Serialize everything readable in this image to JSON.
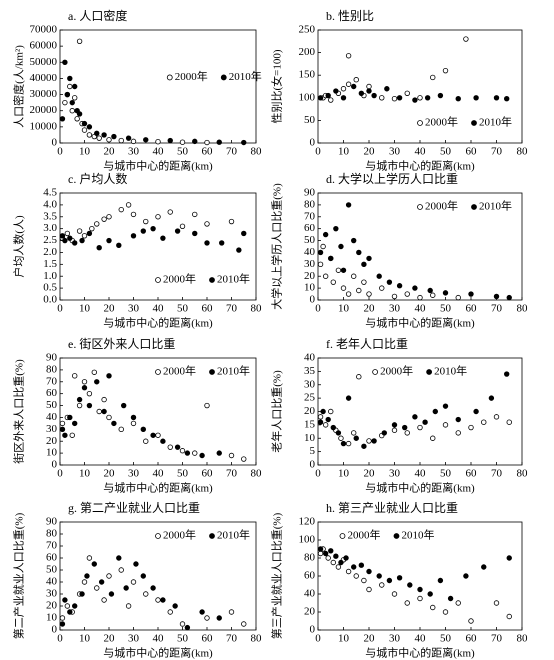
{
  "chart_data": [
    {
      "type": "scatter",
      "title": "a. 人口密度",
      "xlabel": "与城市中心的距离(km)",
      "ylabel": "人口密度(人/km²)",
      "xlim": [
        0,
        80
      ],
      "xticks": [
        0,
        10,
        20,
        30,
        40,
        50,
        60,
        70,
        80
      ],
      "ylim": [
        0,
        70000
      ],
      "yticks": [
        0,
        10000,
        20000,
        30000,
        40000,
        50000,
        60000,
        70000
      ],
      "legend": "center-right",
      "series": [
        {
          "name": "2000年",
          "color": "#000000",
          "marker": "open",
          "x": [
            2,
            3,
            4,
            5,
            6,
            7,
            8,
            9,
            10,
            12,
            14,
            16,
            20,
            25,
            30,
            40,
            50,
            60
          ],
          "values": [
            25000,
            30000,
            35000,
            20000,
            28000,
            15000,
            63000,
            12000,
            8000,
            5000,
            4000,
            3000,
            2000,
            1500,
            1000,
            800,
            500,
            300
          ]
        },
        {
          "name": "2010年",
          "color": "#000000",
          "marker": "filled",
          "x": [
            1,
            2,
            3,
            4,
            5,
            6,
            7,
            8,
            10,
            12,
            15,
            18,
            22,
            28,
            35,
            45,
            55,
            65,
            75
          ],
          "values": [
            15000,
            50000,
            30000,
            40000,
            25000,
            35000,
            20000,
            18000,
            12000,
            10000,
            6000,
            5000,
            4000,
            3000,
            2000,
            1500,
            1000,
            500,
            300
          ]
        }
      ]
    },
    {
      "type": "scatter",
      "title": "b. 性别比",
      "xlabel": "与城市中心的距离(km)",
      "ylabel": "性别比(女=100)",
      "xlim": [
        0,
        80
      ],
      "xticks": [
        0,
        10,
        20,
        30,
        40,
        50,
        60,
        70,
        80
      ],
      "ylim": [
        0,
        250
      ],
      "yticks": [
        0,
        50,
        100,
        150,
        200,
        250
      ],
      "legend": "lower-right",
      "series": [
        {
          "name": "2000年",
          "color": "#000000",
          "marker": "open",
          "x": [
            2,
            5,
            8,
            10,
            12,
            15,
            18,
            20,
            25,
            30,
            35,
            40,
            45,
            50,
            58,
            3,
            12
          ],
          "values": [
            100,
            95,
            110,
            120,
            193,
            140,
            105,
            125,
            100,
            98,
            110,
            100,
            145,
            160,
            230,
            105,
            130
          ]
        },
        {
          "name": "2010年",
          "color": "#000000",
          "marker": "filled",
          "x": [
            1,
            4,
            7,
            10,
            14,
            17,
            22,
            27,
            32,
            38,
            43,
            48,
            55,
            62,
            70,
            74,
            20
          ],
          "values": [
            100,
            105,
            115,
            100,
            125,
            110,
            105,
            120,
            100,
            95,
            100,
            105,
            98,
            100,
            100,
            98,
            115
          ]
        }
      ]
    },
    {
      "type": "scatter",
      "title": "c. 户均人数",
      "xlabel": "与城市中心的距离(km)",
      "ylabel": "户均人数(人)",
      "xlim": [
        0,
        80
      ],
      "xticks": [
        0,
        10,
        20,
        30,
        40,
        50,
        60,
        70,
        80
      ],
      "ylim": [
        0,
        4.5
      ],
      "yticks": [
        {
          "value": 0,
          "label": "0.0"
        },
        0.5,
        {
          "value": 1,
          "label": "1.0"
        },
        1.5,
        {
          "value": 2,
          "label": "2.0"
        },
        2.5,
        {
          "value": 3,
          "label": "3.0"
        },
        3.5,
        {
          "value": 4,
          "label": "4.0"
        },
        4.5
      ],
      "legend": "lower-right",
      "series": [
        {
          "name": "2000年",
          "color": "#000000",
          "marker": "open",
          "x": [
            1,
            3,
            5,
            8,
            10,
            13,
            15,
            18,
            20,
            25,
            28,
            30,
            35,
            40,
            45,
            50,
            55,
            60,
            70
          ],
          "values": [
            2.6,
            2.8,
            2.5,
            2.9,
            2.7,
            3.0,
            3.2,
            3.4,
            3.5,
            3.8,
            4.0,
            3.6,
            3.3,
            3.5,
            3.7,
            3.1,
            3.6,
            3.2,
            3.3
          ]
        },
        {
          "name": "2010年",
          "color": "#000000",
          "marker": "filled",
          "x": [
            1,
            2,
            4,
            6,
            9,
            12,
            16,
            20,
            24,
            30,
            34,
            38,
            42,
            48,
            55,
            60,
            66,
            73,
            75
          ],
          "values": [
            2.7,
            2.5,
            2.6,
            2.4,
            2.5,
            2.8,
            2.2,
            2.5,
            2.3,
            2.7,
            2.9,
            3.0,
            2.6,
            2.9,
            2.8,
            2.4,
            2.4,
            2.1,
            2.8
          ]
        }
      ]
    },
    {
      "type": "scatter",
      "title": "d. 大学以上学历人口比重",
      "xlabel": "与城市中心的距离(km)",
      "ylabel": "大学以上学历人口比重(%)",
      "xlim": [
        0,
        80
      ],
      "xticks": [
        0,
        10,
        20,
        30,
        40,
        50,
        60,
        70,
        80
      ],
      "ylim": [
        0,
        90
      ],
      "yticks": [
        0,
        10,
        20,
        30,
        40,
        50,
        60,
        70,
        80,
        90
      ],
      "legend": "upper-right",
      "series": [
        {
          "name": "2000年",
          "color": "#000000",
          "marker": "open",
          "x": [
            1,
            2,
            3,
            5,
            6,
            8,
            10,
            12,
            14,
            16,
            18,
            20,
            25,
            30,
            35,
            40,
            45,
            55
          ],
          "values": [
            30,
            45,
            20,
            35,
            15,
            25,
            10,
            5,
            20,
            8,
            15,
            5,
            10,
            3,
            5,
            2,
            4,
            2
          ]
        },
        {
          "name": "2010年",
          "color": "#000000",
          "marker": "filled",
          "x": [
            1,
            3,
            5,
            7,
            9,
            10,
            12,
            14,
            16,
            18,
            20,
            24,
            28,
            32,
            38,
            44,
            50,
            60,
            70,
            75
          ],
          "values": [
            40,
            55,
            35,
            60,
            45,
            25,
            80,
            50,
            40,
            30,
            35,
            20,
            15,
            12,
            10,
            8,
            6,
            5,
            3,
            2
          ]
        }
      ]
    },
    {
      "type": "scatter",
      "title": "e. 街区外来人口比重",
      "xlabel": "与城市中心的距离(km)",
      "ylabel": "街区外来人口比重(%)",
      "xlim": [
        0,
        80
      ],
      "xticks": [
        0,
        10,
        20,
        30,
        40,
        50,
        60,
        70,
        80
      ],
      "ylim": [
        0,
        90
      ],
      "yticks": [
        0,
        10,
        20,
        30,
        40,
        50,
        60,
        70,
        80,
        90
      ],
      "legend": "upper-right",
      "series": [
        {
          "name": "2000年",
          "color": "#000000",
          "marker": "open",
          "x": [
            1,
            3,
            5,
            6,
            8,
            10,
            12,
            14,
            16,
            18,
            20,
            25,
            30,
            35,
            40,
            45,
            50,
            55,
            60,
            70,
            75
          ],
          "values": [
            35,
            40,
            25,
            75,
            50,
            70,
            60,
            78,
            45,
            55,
            40,
            30,
            35,
            20,
            25,
            15,
            12,
            10,
            50,
            8,
            5
          ]
        },
        {
          "name": "2010年",
          "color": "#000000",
          "marker": "filled",
          "x": [
            1,
            2,
            4,
            6,
            8,
            10,
            12,
            15,
            18,
            20,
            22,
            26,
            30,
            34,
            38,
            42,
            48,
            52,
            58,
            65
          ],
          "values": [
            30,
            25,
            40,
            35,
            55,
            65,
            50,
            70,
            45,
            75,
            35,
            50,
            40,
            30,
            25,
            20,
            15,
            10,
            8,
            10
          ]
        }
      ]
    },
    {
      "type": "scatter",
      "title": "f. 老年人口比重",
      "xlabel": "与城市中心的距离(km)",
      "ylabel": "老年人口比重(%)",
      "xlim": [
        0,
        80
      ],
      "xticks": [
        0,
        10,
        20,
        30,
        40,
        50,
        60,
        70,
        80
      ],
      "ylim": [
        0,
        40
      ],
      "yticks": [
        0,
        5,
        10,
        15,
        20,
        25,
        30,
        35,
        40
      ],
      "legend": "upper-center",
      "series": [
        {
          "name": "2000年",
          "color": "#000000",
          "marker": "open",
          "x": [
            1,
            3,
            5,
            7,
            9,
            12,
            14,
            16,
            20,
            25,
            30,
            35,
            40,
            45,
            50,
            55,
            60,
            65,
            70,
            75
          ],
          "values": [
            18,
            15,
            20,
            13,
            10,
            8,
            12,
            33,
            9,
            11,
            13,
            12,
            14,
            10,
            15,
            12,
            14,
            16,
            18,
            16
          ]
        },
        {
          "name": "2010年",
          "color": "#000000",
          "marker": "filled",
          "x": [
            1,
            2,
            4,
            6,
            8,
            10,
            12,
            15,
            18,
            22,
            26,
            30,
            34,
            38,
            42,
            46,
            50,
            55,
            62,
            68,
            74
          ],
          "values": [
            16,
            20,
            17,
            14,
            12,
            8,
            25,
            10,
            7,
            9,
            12,
            15,
            14,
            18,
            16,
            20,
            22,
            17,
            20,
            25,
            34
          ]
        }
      ]
    },
    {
      "type": "scatter",
      "title": "g. 第二产业就业人口比重",
      "xlabel": "与城市中心的距离(km)",
      "ylabel": "第二产业就业人口比重(%)",
      "xlim": [
        0,
        80
      ],
      "xticks": [
        0,
        10,
        20,
        30,
        40,
        50,
        60,
        70,
        80
      ],
      "ylim": [
        0,
        90
      ],
      "yticks": [
        0,
        10,
        20,
        30,
        40,
        50,
        60,
        70,
        80,
        90
      ],
      "legend": "upper-right",
      "series": [
        {
          "name": "2000年",
          "color": "#000000",
          "marker": "open",
          "x": [
            1,
            3,
            5,
            8,
            10,
            12,
            15,
            18,
            20,
            25,
            28,
            30,
            35,
            40,
            45,
            50,
            60,
            70,
            75
          ],
          "values": [
            10,
            20,
            15,
            30,
            40,
            60,
            35,
            25,
            45,
            50,
            20,
            40,
            30,
            25,
            15,
            5,
            10,
            15,
            5
          ]
        },
        {
          "name": "2010年",
          "color": "#000000",
          "marker": "filled",
          "x": [
            1,
            2,
            4,
            6,
            9,
            11,
            14,
            17,
            21,
            24,
            27,
            31,
            34,
            38,
            42,
            47,
            52,
            58,
            65
          ],
          "values": [
            5,
            25,
            15,
            20,
            30,
            45,
            55,
            40,
            30,
            60,
            35,
            55,
            45,
            35,
            25,
            20,
            2,
            15,
            10
          ]
        }
      ]
    },
    {
      "type": "scatter",
      "title": "h. 第三产业就业人口比重",
      "xlabel": "与城市中心的距离(km)",
      "ylabel": "第三产业就业人口比重(%)",
      "xlim": [
        0,
        80
      ],
      "xticks": [
        0,
        10,
        20,
        30,
        40,
        50,
        60,
        70,
        80
      ],
      "ylim": [
        0,
        120
      ],
      "yticks": [
        0,
        20,
        40,
        60,
        80,
        100,
        120
      ],
      "legend": "upper-left",
      "series": [
        {
          "name": "2000年",
          "color": "#000000",
          "marker": "open",
          "x": [
            1,
            2,
            4,
            6,
            8,
            10,
            12,
            15,
            18,
            20,
            25,
            30,
            35,
            40,
            45,
            50,
            55,
            60,
            70,
            75
          ],
          "values": [
            85,
            90,
            80,
            75,
            70,
            78,
            65,
            60,
            55,
            45,
            50,
            40,
            30,
            35,
            25,
            20,
            30,
            10,
            30,
            15
          ]
        },
        {
          "name": "2010年",
          "color": "#000000",
          "marker": "filled",
          "x": [
            1,
            3,
            5,
            7,
            9,
            11,
            14,
            17,
            20,
            24,
            28,
            32,
            36,
            40,
            44,
            48,
            52,
            58,
            65,
            75
          ],
          "values": [
            90,
            85,
            88,
            82,
            75,
            80,
            70,
            72,
            65,
            60,
            55,
            58,
            50,
            45,
            40,
            55,
            35,
            60,
            70,
            80
          ]
        }
      ]
    }
  ]
}
